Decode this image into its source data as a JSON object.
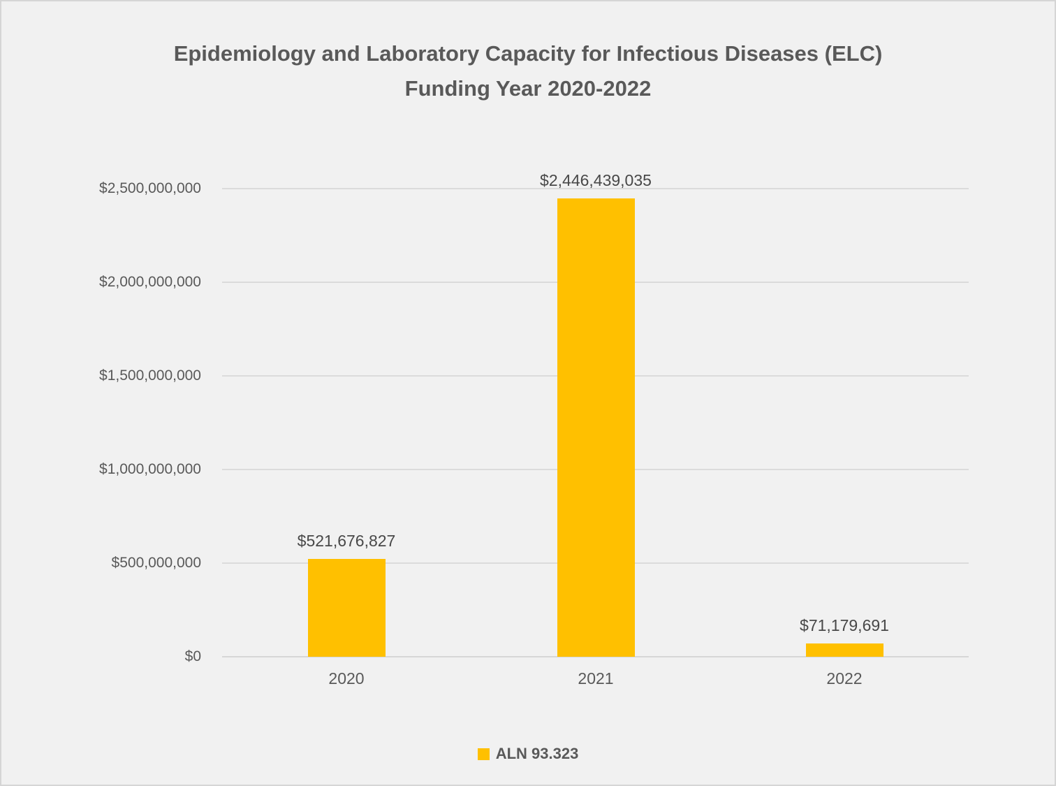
{
  "header": {
    "title_line1": "Epidemiology and Laboratory Capacity for Infectious Diseases (ELC)",
    "title_line2": "Funding Year 2020-2022"
  },
  "chart_data": {
    "type": "bar",
    "title": "Epidemiology and Laboratory Capacity for Infectious Diseases (ELC) Funding Year 2020-2022",
    "categories": [
      "2020",
      "2021",
      "2022"
    ],
    "series": [
      {
        "name": "ALN 93.323",
        "values": [
          521676827,
          2446439035,
          71179691
        ],
        "value_labels": [
          "$521,676,827",
          "$2,446,439,035",
          "$71,179,691"
        ],
        "color": "#FFC000"
      }
    ],
    "xlabel": "",
    "ylabel": "",
    "ylim": [
      0,
      2500000000
    ],
    "y_tick_step": 500000000,
    "y_tick_labels": [
      "$0",
      "$500,000,000",
      "$1,000,000,000",
      "$1,500,000,000",
      "$2,000,000,000",
      "$2,500,000,000"
    ],
    "grid": true,
    "legend_position": "bottom",
    "background_color": "#F1F1F1",
    "text_color": "#595959"
  },
  "legend": {
    "label": "ALN 93.323",
    "swatch_color": "#FFC000"
  }
}
